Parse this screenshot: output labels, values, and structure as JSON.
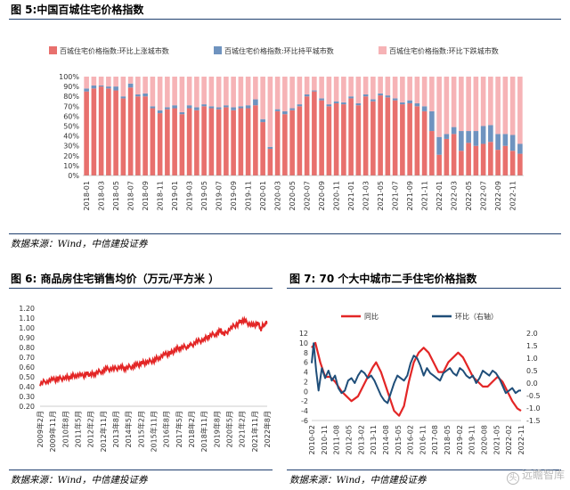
{
  "figures": {
    "fig5": {
      "title": "图 5:中国百城住宅价格指数",
      "source": "数据来源：Wind，中信建投证券"
    },
    "fig6": {
      "title": "图 6:  商品房住宅销售均价（万元/平方米 ）",
      "source": "数据来源：Wind，中信建投证券"
    },
    "fig7": {
      "title": "图 7: 70 个大中城市二手住宅价格指数",
      "source": "数据来源：Wind，中信建投证券"
    }
  },
  "watermark": {
    "icon": "头",
    "text": "远瞻智库"
  },
  "colors": {
    "up": "#e8706d",
    "flat": "#6f93bf",
    "down": "#f6b3b6",
    "red": "#e32626",
    "navy": "#1f4e79",
    "rule": "#1f3f6e"
  },
  "chart_data": [
    {
      "type": "bar",
      "stacked": true,
      "title": "中国百城住宅价格指数",
      "legend": [
        "百城住宅价格指数:环比上涨城市数",
        "百城住宅价格指数:环比持平城市数",
        "百城住宅价格指数:环比下跌城市数"
      ],
      "legend_position": "top",
      "ylim": [
        0,
        100
      ],
      "yticks": [
        "0%",
        "10%",
        "20%",
        "30%",
        "40%",
        "50%",
        "60%",
        "70%",
        "80%",
        "90%",
        "100%"
      ],
      "xtick_labels": [
        "2018-01",
        "2018-03",
        "2018-05",
        "2018-07",
        "2018-09",
        "2018-11",
        "2019-01",
        "2019-03",
        "2019-05",
        "2019-07",
        "2019-09",
        "2019-11",
        "2020-01",
        "2020-03",
        "2020-05",
        "2020-07",
        "2020-09",
        "2020-11",
        "2021-01",
        "2021-03",
        "2021-05",
        "2021-07",
        "2021-09",
        "2021-11",
        "2022-01",
        "2022-03",
        "2022-05",
        "2022-07",
        "2022-09",
        "2022-11"
      ],
      "categories": [
        "2018-01",
        "2018-02",
        "2018-03",
        "2018-04",
        "2018-05",
        "2018-06",
        "2018-07",
        "2018-08",
        "2018-09",
        "2018-10",
        "2018-11",
        "2018-12",
        "2019-01",
        "2019-02",
        "2019-03",
        "2019-04",
        "2019-05",
        "2019-06",
        "2019-07",
        "2019-08",
        "2019-09",
        "2019-10",
        "2019-11",
        "2019-12",
        "2020-01",
        "2020-02",
        "2020-03",
        "2020-04",
        "2020-05",
        "2020-06",
        "2020-07",
        "2020-08",
        "2020-09",
        "2020-10",
        "2020-11",
        "2020-12",
        "2021-01",
        "2021-02",
        "2021-03",
        "2021-04",
        "2021-05",
        "2021-06",
        "2021-07",
        "2021-08",
        "2021-09",
        "2021-10",
        "2021-11",
        "2021-12",
        "2022-01",
        "2022-02",
        "2022-03",
        "2022-04",
        "2022-05",
        "2022-06",
        "2022-07",
        "2022-08",
        "2022-09",
        "2022-10",
        "2022-11",
        "2022-12"
      ],
      "series": [
        {
          "name": "环比上涨城市数",
          "values": [
            85,
            88,
            90,
            88,
            86,
            78,
            89,
            80,
            80,
            68,
            63,
            67,
            68,
            62,
            68,
            66,
            70,
            68,
            67,
            69,
            66,
            68,
            68,
            71,
            54,
            27,
            65,
            62,
            66,
            70,
            80,
            85,
            76,
            70,
            73,
            72,
            78,
            71,
            80,
            75,
            81,
            79,
            76,
            72,
            73,
            70,
            65,
            45,
            21,
            37,
            42,
            25,
            33,
            30,
            32,
            34,
            26,
            30,
            25,
            22
          ]
        },
        {
          "name": "环比持平城市数",
          "values": [
            3,
            3,
            1,
            2,
            4,
            2,
            4,
            2,
            3,
            2,
            3,
            2,
            3,
            2,
            3,
            3,
            2,
            2,
            2,
            2,
            3,
            2,
            3,
            6,
            3,
            2,
            2,
            3,
            2,
            2,
            2,
            1,
            2,
            2,
            2,
            2,
            2,
            2,
            2,
            2,
            2,
            2,
            2,
            2,
            3,
            3,
            5,
            20,
            18,
            5,
            7,
            20,
            12,
            15,
            18,
            17,
            16,
            12,
            16,
            10
          ]
        },
        {
          "name": "环比下跌城市数",
          "values": [
            12,
            9,
            9,
            10,
            10,
            20,
            7,
            18,
            17,
            30,
            34,
            31,
            29,
            36,
            29,
            31,
            28,
            30,
            31,
            29,
            31,
            30,
            29,
            23,
            43,
            71,
            33,
            35,
            32,
            28,
            18,
            14,
            22,
            28,
            25,
            26,
            20,
            27,
            18,
            23,
            17,
            19,
            22,
            26,
            24,
            27,
            30,
            35,
            61,
            58,
            51,
            55,
            55,
            55,
            50,
            49,
            58,
            58,
            59,
            68
          ]
        }
      ]
    },
    {
      "type": "line",
      "title": "商品房住宅销售均价（万元/平方米 ）",
      "ylim": [
        0.2,
        1.2
      ],
      "yticks": [
        "0.20",
        "0.30",
        "0.40",
        "0.50",
        "0.60",
        "0.70",
        "0.80",
        "0.90",
        "1.00",
        "1.10",
        "1.20"
      ],
      "xtick_labels": [
        "2009年2月",
        "2009年11月",
        "2010年8月",
        "2011年5月",
        "2012年2月",
        "2012年11月",
        "2013年8月",
        "2014年5月",
        "2015年2月",
        "2015年11月",
        "2016年8月",
        "2017年5月",
        "2018年2月",
        "2018年11月",
        "2019年8月",
        "2020年5月",
        "2021年2月",
        "2021年11月",
        "2022年8月"
      ],
      "x_range": [
        2009.08,
        2022.67
      ],
      "series": [
        {
          "name": "商品房住宅销售均价",
          "x": [
            2009.08,
            2009.5,
            2009.9,
            2010.2,
            2010.6,
            2010.9,
            2011.2,
            2011.6,
            2011.9,
            2012.1,
            2012.4,
            2012.8,
            2013.1,
            2013.5,
            2013.9,
            2014.2,
            2014.6,
            2014.9,
            2015.2,
            2015.5,
            2015.9,
            2016.2,
            2016.6,
            2016.9,
            2017.2,
            2017.5,
            2017.9,
            2018.1,
            2018.5,
            2018.9,
            2019.2,
            2019.6,
            2019.9,
            2020.1,
            2020.5,
            2020.9,
            2021.1,
            2021.4,
            2021.8,
            2022.1,
            2022.3,
            2022.5,
            2022.67
          ],
          "values": [
            0.43,
            0.46,
            0.47,
            0.48,
            0.49,
            0.5,
            0.52,
            0.51,
            0.53,
            0.52,
            0.54,
            0.56,
            0.58,
            0.58,
            0.6,
            0.59,
            0.61,
            0.62,
            0.64,
            0.65,
            0.67,
            0.7,
            0.73,
            0.74,
            0.78,
            0.8,
            0.81,
            0.82,
            0.86,
            0.88,
            0.92,
            0.94,
            0.97,
            0.93,
            1.0,
            1.04,
            1.08,
            1.06,
            1.02,
            1.05,
            0.99,
            1.04,
            1.05
          ]
        }
      ]
    },
    {
      "type": "line",
      "title": "70 个大中城市二手住宅价格指数",
      "legend": [
        "同比",
        "环比（右轴）"
      ],
      "legend_position": "top",
      "ylim": [
        -6,
        12
      ],
      "yticks": [
        "-6",
        "-4",
        "-2",
        "0",
        "2",
        "4",
        "6",
        "8",
        "10",
        "12"
      ],
      "y2lim": [
        -1.5,
        2.0
      ],
      "y2ticks": [
        "-1.5",
        "-1.0",
        "-0.5",
        "0.0",
        "0.5",
        "1.0",
        "1.5",
        "2.0"
      ],
      "xtick_labels": [
        "2010-02",
        "2010-11",
        "2011-08",
        "2012-05",
        "2013-02",
        "2013-11",
        "2014-08",
        "2015-05",
        "2016-02",
        "2016-11",
        "2017-08",
        "2018-05",
        "2019-02",
        "2019-11",
        "2020-08",
        "2021-05",
        "2022-02",
        "2022-11"
      ],
      "x_range": [
        2010.08,
        2022.83
      ],
      "series": [
        {
          "name": "同比",
          "axis": "left",
          "x": [
            2010.08,
            2010.3,
            2010.6,
            2010.9,
            2011.2,
            2011.5,
            2011.9,
            2012.2,
            2012.5,
            2012.9,
            2013.2,
            2013.5,
            2013.8,
            2014.0,
            2014.3,
            2014.6,
            2014.9,
            2015.1,
            2015.4,
            2015.7,
            2016.0,
            2016.3,
            2016.6,
            2016.9,
            2017.2,
            2017.5,
            2017.8,
            2018.1,
            2018.4,
            2018.7,
            2019.0,
            2019.3,
            2019.6,
            2019.9,
            2020.2,
            2020.5,
            2020.8,
            2021.1,
            2021.4,
            2021.7,
            2022.0,
            2022.3,
            2022.6,
            2022.83
          ],
          "values": [
            9,
            10,
            6,
            3,
            3,
            2,
            0,
            -1,
            -2,
            -1,
            1,
            3,
            5,
            6,
            4,
            1,
            -2,
            -4,
            -5,
            -3,
            2,
            6,
            8,
            9,
            8,
            6,
            4,
            4,
            6,
            7,
            8,
            7,
            5,
            3,
            2,
            1,
            1,
            2,
            3,
            2,
            0,
            -2,
            -3.5,
            -4
          ]
        },
        {
          "name": "环比（右轴）",
          "axis": "right",
          "x": [
            2010.08,
            2010.2,
            2010.35,
            2010.5,
            2010.7,
            2010.9,
            2011.1,
            2011.3,
            2011.5,
            2011.7,
            2011.9,
            2012.1,
            2012.3,
            2012.5,
            2012.7,
            2012.9,
            2013.1,
            2013.3,
            2013.5,
            2013.7,
            2013.9,
            2014.1,
            2014.3,
            2014.5,
            2014.7,
            2014.9,
            2015.1,
            2015.3,
            2015.5,
            2015.7,
            2015.9,
            2016.1,
            2016.3,
            2016.5,
            2016.7,
            2016.9,
            2017.1,
            2017.3,
            2017.5,
            2017.7,
            2017.9,
            2018.1,
            2018.3,
            2018.5,
            2018.7,
            2018.9,
            2019.1,
            2019.3,
            2019.5,
            2019.7,
            2019.9,
            2020.1,
            2020.3,
            2020.5,
            2020.7,
            2020.9,
            2021.1,
            2021.3,
            2021.5,
            2021.7,
            2021.9,
            2022.1,
            2022.3,
            2022.5,
            2022.7,
            2022.83
          ],
          "values": [
            0.8,
            1.6,
            0.5,
            -0.3,
            0.6,
            0.2,
            0.5,
            0.1,
            0.3,
            -0.2,
            -0.4,
            -0.3,
            0.1,
            0.2,
            0.0,
            0.3,
            0.5,
            0.4,
            0.2,
            0.3,
            0.1,
            -0.2,
            -0.5,
            -0.7,
            -0.8,
            -0.4,
            0.0,
            0.3,
            0.2,
            0.1,
            0.3,
            0.8,
            1.1,
            1.0,
            0.7,
            0.3,
            0.6,
            0.4,
            0.3,
            0.2,
            0.1,
            0.4,
            0.5,
            0.6,
            0.4,
            0.3,
            0.6,
            0.5,
            0.3,
            0.2,
            0.3,
            0.0,
            0.2,
            0.5,
            0.4,
            0.3,
            0.5,
            0.4,
            0.2,
            -0.1,
            -0.4,
            -0.3,
            -0.2,
            -0.4,
            -0.3,
            -0.3
          ]
        }
      ]
    }
  ]
}
